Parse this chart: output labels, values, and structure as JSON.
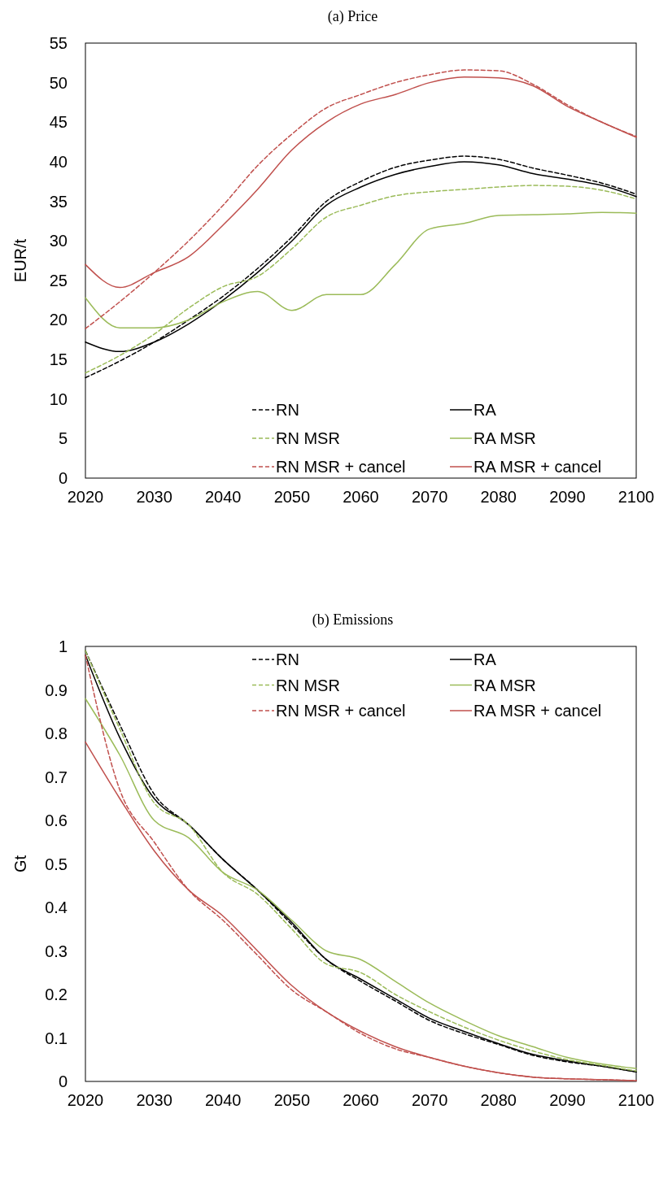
{
  "chart_data": [
    {
      "type": "line",
      "title": "(a) Price",
      "ylabel": "EUR/t",
      "legend": "bottom",
      "grid": false,
      "x": [
        2020,
        2025,
        2030,
        2035,
        2040,
        2045,
        2050,
        2055,
        2060,
        2065,
        2070,
        2075,
        2080,
        2085,
        2090,
        2095,
        2100
      ],
      "xlim": [
        2020,
        2100
      ],
      "xticks": [
        2020,
        2030,
        2040,
        2050,
        2060,
        2070,
        2080,
        2090,
        2100
      ],
      "ylim": [
        0,
        55
      ],
      "yticks": [
        0,
        5,
        10,
        15,
        20,
        25,
        30,
        35,
        40,
        45,
        50,
        55
      ],
      "series": [
        {
          "name": "RN",
          "color": "#000000",
          "line_style": "dashed",
          "values": [
            12.7,
            14.8,
            17.2,
            20,
            23,
            26.5,
            30.5,
            35,
            37.5,
            39.3,
            40.2,
            40.7,
            40.3,
            39.2,
            38.3,
            37.3,
            35.9
          ]
        },
        {
          "name": "RA",
          "color": "#000000",
          "line_style": "solid",
          "values": [
            17.2,
            16.0,
            17.2,
            19.5,
            22.5,
            26,
            30,
            34.5,
            36.8,
            38.4,
            39.4,
            40,
            39.6,
            38.5,
            37.8,
            37,
            35.6
          ]
        },
        {
          "name": "RN MSR",
          "color": "#9bbb59",
          "line_style": "dashed",
          "values": [
            13.3,
            15.5,
            18.2,
            21.5,
            24.2,
            25.5,
            29,
            33,
            34.5,
            35.7,
            36.2,
            36.5,
            36.8,
            37,
            36.9,
            36.4,
            35.3
          ]
        },
        {
          "name": "RA MSR",
          "color": "#9bbb59",
          "line_style": "solid",
          "values": [
            22.8,
            19.0,
            19.0,
            20,
            22.3,
            23.6,
            21.2,
            23.2,
            23.2,
            27,
            31.5,
            32.2,
            33.2,
            33.3,
            33.4,
            33.6,
            33.5
          ]
        },
        {
          "name": "RN MSR + cancel",
          "color": "#c0504d",
          "line_style": "dashed",
          "values": [
            18.9,
            22.3,
            26,
            30,
            34.5,
            39.5,
            43.5,
            46.8,
            48.5,
            50,
            51,
            51.6,
            51.5,
            49.8,
            47.2,
            45,
            43.2
          ]
        },
        {
          "name": "RA MSR + cancel",
          "color": "#c0504d",
          "line_style": "solid",
          "values": [
            27,
            24.1,
            26,
            28,
            32,
            36.5,
            41.5,
            45,
            47.3,
            48.5,
            50,
            50.7,
            50.6,
            49.6,
            47,
            45,
            43.1
          ]
        }
      ]
    },
    {
      "type": "line",
      "title": "(b) Emissions",
      "ylabel": "Gt",
      "legend": "top",
      "grid": false,
      "x": [
        2020,
        2025,
        2030,
        2035,
        2040,
        2045,
        2050,
        2055,
        2060,
        2065,
        2070,
        2075,
        2080,
        2085,
        2090,
        2095,
        2100
      ],
      "xlim": [
        2020,
        2100
      ],
      "xticks": [
        2020,
        2030,
        2040,
        2050,
        2060,
        2070,
        2080,
        2090,
        2100
      ],
      "ylim": [
        0,
        1
      ],
      "yticks": [
        0,
        0.1,
        0.2,
        0.3,
        0.4,
        0.5,
        0.6,
        0.7,
        0.8,
        0.9,
        1
      ],
      "series": [
        {
          "name": "RN",
          "color": "#000000",
          "line_style": "dashed",
          "values": [
            0.99,
            0.82,
            0.66,
            0.59,
            0.51,
            0.44,
            0.36,
            0.28,
            0.23,
            0.185,
            0.14,
            0.11,
            0.085,
            0.06,
            0.045,
            0.035,
            0.022
          ]
        },
        {
          "name": "RA",
          "color": "#000000",
          "line_style": "solid",
          "values": [
            0.98,
            0.79,
            0.65,
            0.59,
            0.51,
            0.44,
            0.365,
            0.28,
            0.235,
            0.19,
            0.145,
            0.115,
            0.087,
            0.062,
            0.047,
            0.035,
            0.022
          ]
        },
        {
          "name": "RN MSR",
          "color": "#9bbb59",
          "line_style": "dashed",
          "values": [
            0.99,
            0.81,
            0.64,
            0.59,
            0.48,
            0.43,
            0.35,
            0.27,
            0.25,
            0.2,
            0.16,
            0.125,
            0.095,
            0.07,
            0.05,
            0.037,
            0.024
          ]
        },
        {
          "name": "RA MSR",
          "color": "#9bbb59",
          "line_style": "solid",
          "values": [
            0.88,
            0.75,
            0.6,
            0.56,
            0.48,
            0.44,
            0.37,
            0.3,
            0.28,
            0.23,
            0.18,
            0.14,
            0.105,
            0.08,
            0.055,
            0.04,
            0.03
          ]
        },
        {
          "name": "RN MSR + cancel",
          "color": "#c0504d",
          "line_style": "dashed",
          "values": [
            0.98,
            0.67,
            0.55,
            0.44,
            0.37,
            0.29,
            0.21,
            0.16,
            0.11,
            0.075,
            0.055,
            0.035,
            0.02,
            0.01,
            0.006,
            0.004,
            0.002
          ]
        },
        {
          "name": "RA MSR + cancel",
          "color": "#c0504d",
          "line_style": "solid",
          "values": [
            0.78,
            0.65,
            0.53,
            0.44,
            0.38,
            0.3,
            0.22,
            0.16,
            0.115,
            0.08,
            0.055,
            0.035,
            0.02,
            0.01,
            0.006,
            0.004,
            0.002
          ]
        }
      ]
    }
  ]
}
